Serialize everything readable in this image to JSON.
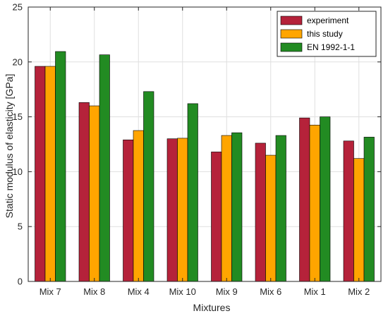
{
  "chart_data": {
    "type": "bar",
    "title": "",
    "xlabel": "Mixtures",
    "ylabel": "Static modulus of elasticity [GPa]",
    "ylim": [
      0,
      25
    ],
    "yticks": [
      0,
      5,
      10,
      15,
      20,
      25
    ],
    "grid": true,
    "legend_position": "top-right",
    "categories": [
      "Mix 7",
      "Mix 8",
      "Mix 4",
      "Mix 10",
      "Mix 9",
      "Mix 6",
      "Mix 1",
      "Mix 2"
    ],
    "series": [
      {
        "name": "experiment",
        "color": "#b5223a",
        "values": [
          19.6,
          16.3,
          12.9,
          13.0,
          11.8,
          12.6,
          14.9,
          12.8
        ]
      },
      {
        "name": "this study",
        "color": "#ffa500",
        "values": [
          19.6,
          16.0,
          13.75,
          13.05,
          13.3,
          11.5,
          14.25,
          11.2
        ]
      },
      {
        "name": "EN 1992-1-1",
        "color": "#228b22",
        "values": [
          20.95,
          20.65,
          17.3,
          16.2,
          13.55,
          13.3,
          15.0,
          13.15
        ]
      }
    ]
  }
}
